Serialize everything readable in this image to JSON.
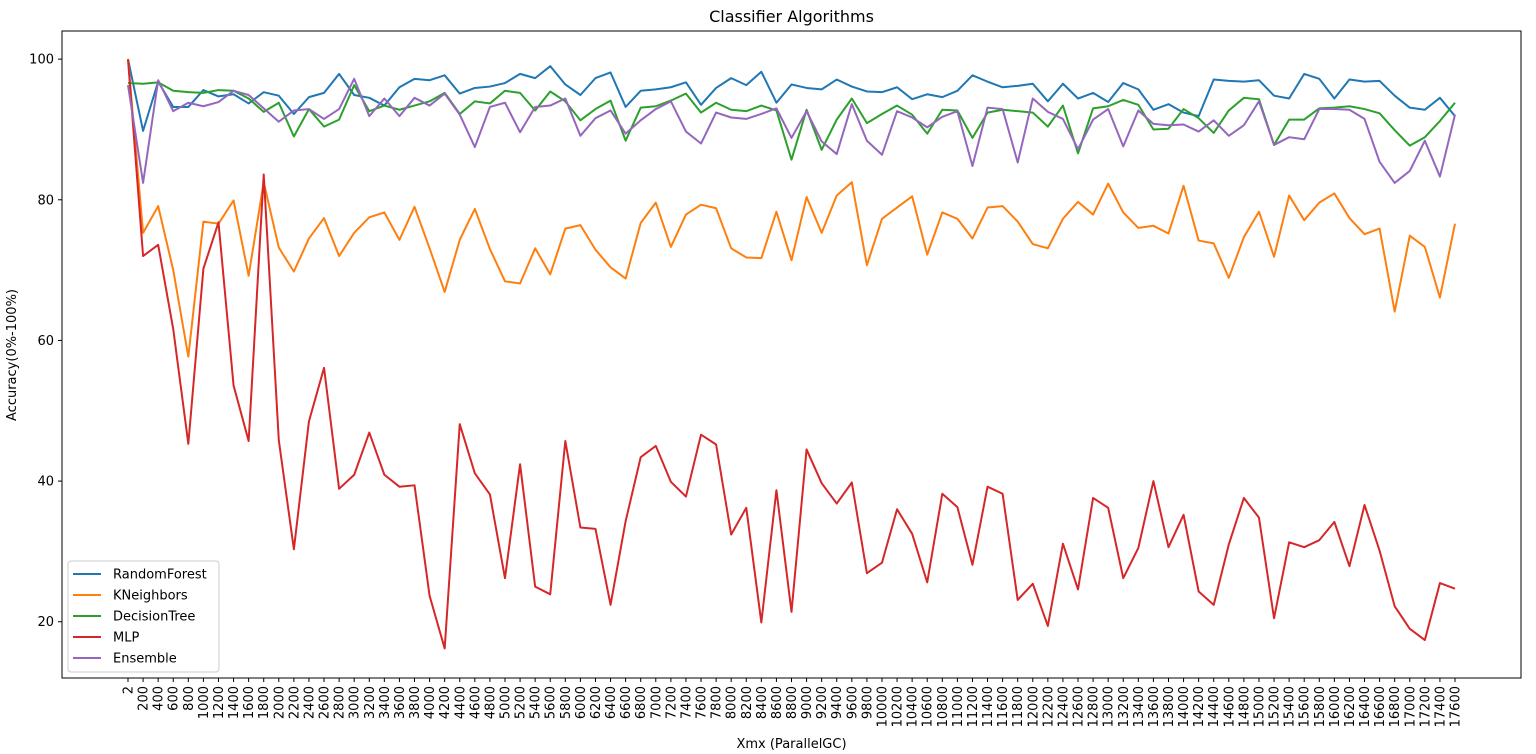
{
  "chart_data": {
    "type": "line",
    "title": "Classifier Algorithms",
    "xlabel": "Xmx (ParallelGC)",
    "ylabel": "Accuracy(0%-100%)",
    "ylim": [
      12,
      104
    ],
    "yticks": [
      20,
      40,
      60,
      80,
      100
    ],
    "grid": false,
    "legend_position": "lower-left",
    "x": [
      "2",
      "200",
      "400",
      "600",
      "800",
      "1000",
      "1200",
      "1400",
      "1600",
      "1800",
      "2000",
      "2200",
      "2400",
      "2600",
      "2800",
      "3000",
      "3200",
      "3400",
      "3600",
      "3800",
      "4000",
      "4200",
      "4400",
      "4600",
      "4800",
      "5000",
      "5200",
      "5400",
      "5600",
      "5800",
      "6000",
      "6200",
      "6400",
      "6600",
      "6800",
      "7000",
      "7200",
      "7400",
      "7600",
      "7800",
      "8000",
      "8200",
      "8400",
      "8600",
      "8800",
      "9000",
      "9200",
      "9400",
      "9600",
      "9800",
      "10000",
      "10200",
      "10400",
      "10600",
      "10800",
      "11000",
      "11200",
      "11400",
      "11600",
      "11800",
      "12000",
      "12200",
      "12400",
      "12600",
      "12800",
      "13000",
      "13200",
      "13400",
      "13600",
      "13800",
      "14000",
      "14200",
      "14400",
      "14600",
      "14800",
      "15000",
      "15200",
      "15400",
      "15600",
      "15800",
      "16000",
      "16200",
      "16400",
      "16600",
      "16800",
      "17000",
      "17200",
      "17400",
      "17600"
    ],
    "series": [
      {
        "name": "RandomForest",
        "color": "#1f77b4",
        "values": [
          100,
          89.8,
          96.8,
          93.2,
          93.2,
          95.6,
          94.7,
          95,
          93.7,
          95.3,
          94.8,
          92.2,
          94.6,
          95.2,
          97.9,
          94.9,
          94.5,
          93.4,
          96,
          97.2,
          97,
          97.7,
          95.1,
          95.9,
          96.1,
          96.6,
          97.9,
          97.3,
          99,
          96.4,
          94.9,
          97.3,
          98.1,
          93.2,
          95.5,
          95.7,
          96,
          96.7,
          93.5,
          95.9,
          97.3,
          96.3,
          98.2,
          93.8,
          96.4,
          95.9,
          95.7,
          97.1,
          96.1,
          95.4,
          95.3,
          96,
          94.3,
          95,
          94.6,
          95.5,
          97.7,
          96.8,
          96,
          96.2,
          96.5,
          94,
          96.5,
          94.4,
          95.2,
          93.9,
          96.6,
          95.7,
          92.8,
          93.6,
          92.4,
          91.9,
          97.1,
          96.9,
          96.8,
          97,
          94.8,
          94.4,
          97.9,
          97.2,
          94.4,
          97.1,
          96.8,
          96.9,
          94.8,
          93.1,
          92.8,
          94.5,
          91.9
        ]
      },
      {
        "name": "KNeighbors",
        "color": "#ff7f0e",
        "values": [
          100,
          75.3,
          79.1,
          70,
          57.7,
          76.9,
          76.6,
          79.9,
          69.2,
          82.5,
          73.2,
          69.8,
          74.5,
          77.4,
          72,
          75.3,
          77.5,
          78.2,
          74.3,
          79,
          73.1,
          66.9,
          74.3,
          78.7,
          73,
          68.4,
          68.1,
          73.1,
          69.4,
          75.9,
          76.4,
          72.9,
          70.4,
          68.8,
          76.7,
          79.6,
          73.3,
          77.9,
          79.3,
          78.8,
          73.1,
          71.8,
          71.7,
          78.3,
          71.4,
          80.4,
          75.3,
          80.6,
          82.5,
          70.7,
          77.3,
          78.9,
          80.5,
          72.2,
          78.2,
          77.3,
          74.5,
          78.9,
          79.1,
          76.9,
          73.7,
          73.1,
          77.3,
          79.7,
          77.9,
          82.3,
          78.2,
          76,
          76.3,
          75.2,
          82,
          74.2,
          73.8,
          68.9,
          74.7,
          78.3,
          71.9,
          80.6,
          77.1,
          79.6,
          80.9,
          77.4,
          75.1,
          75.9,
          64.1,
          74.9,
          73.3,
          66.1,
          76.6
        ]
      },
      {
        "name": "DecisionTree",
        "color": "#2ca02c",
        "values": [
          96.6,
          96.5,
          96.7,
          95.5,
          95.3,
          95.2,
          95.6,
          95.5,
          94.4,
          92.5,
          93.8,
          89,
          92.9,
          90.4,
          91.4,
          96.3,
          92.6,
          93.4,
          92.8,
          93.4,
          94,
          95.2,
          92.2,
          94,
          93.7,
          95.5,
          95.2,
          92.7,
          95.4,
          94,
          91.3,
          92.9,
          94.1,
          88.4,
          93.1,
          93.3,
          94.1,
          95.1,
          92.4,
          93.8,
          92.8,
          92.6,
          93.4,
          92.7,
          85.7,
          92.8,
          87.1,
          91.4,
          94.4,
          90.9,
          92.2,
          93.4,
          92.1,
          89.4,
          92.8,
          92.7,
          88.8,
          92.4,
          92.8,
          92.6,
          92.4,
          90.4,
          93.4,
          86.6,
          93,
          93.3,
          94.2,
          93.5,
          90,
          90.1,
          92.9,
          91.6,
          89.5,
          92.7,
          94.5,
          94.3,
          87.8,
          91.4,
          91.4,
          93,
          93.1,
          93.3,
          92.9,
          92.3,
          89.9,
          87.7,
          88.9,
          91.2,
          93.8
        ]
      },
      {
        "name": "MLP",
        "color": "#d62728",
        "values": [
          100,
          72,
          73.6,
          61.6,
          45.3,
          70.2,
          76.8,
          53.6,
          45.7,
          83.6,
          45.8,
          30.3,
          48.5,
          56.1,
          38.9,
          40.9,
          46.9,
          40.9,
          39.2,
          39.4,
          23.7,
          16.2,
          48.1,
          41.1,
          38.1,
          26.2,
          42.4,
          25,
          23.9,
          45.7,
          33.4,
          33.2,
          22.4,
          34.3,
          43.4,
          45,
          39.9,
          37.8,
          46.6,
          45.2,
          32.4,
          36.2,
          19.9,
          38.7,
          21.4,
          44.5,
          39.7,
          36.8,
          39.8,
          26.9,
          28.4,
          36,
          32.5,
          25.6,
          38.2,
          36.3,
          28.1,
          39.2,
          38.2,
          23.1,
          25.4,
          19.4,
          31.1,
          24.6,
          37.6,
          36.2,
          26.2,
          30.5,
          40,
          30.6,
          35.2,
          24.3,
          22.4,
          31,
          37.6,
          34.8,
          20.5,
          31.3,
          30.6,
          31.6,
          34.2,
          27.9,
          36.6,
          30.1,
          22.2,
          19,
          17.4,
          25.5,
          24.7
        ]
      },
      {
        "name": "Ensemble",
        "color": "#9467bd",
        "values": [
          96.3,
          82.4,
          97,
          92.6,
          93.8,
          93.3,
          93.9,
          95.5,
          94.9,
          93,
          91.1,
          92.7,
          92.9,
          91.5,
          92.9,
          97.2,
          91.9,
          94.4,
          91.9,
          94.5,
          93.4,
          95.1,
          92.1,
          87.5,
          93.2,
          93.8,
          89.6,
          93.2,
          93.4,
          94.4,
          89.1,
          91.6,
          92.7,
          89.4,
          91.3,
          92.9,
          94,
          89.7,
          88,
          92.4,
          91.7,
          91.5,
          92.2,
          93,
          88.8,
          92.6,
          88.3,
          86.5,
          93.6,
          88.4,
          86.4,
          92.6,
          91.7,
          90.3,
          91.8,
          92.6,
          84.8,
          93.1,
          92.9,
          85.3,
          94.4,
          92.5,
          91.5,
          87.2,
          91.4,
          92.9,
          87.6,
          92.7,
          90.8,
          90.6,
          90.7,
          89.7,
          91.3,
          89.1,
          90.6,
          94,
          87.8,
          88.9,
          88.6,
          92.9,
          92.9,
          92.8,
          91.5,
          85.4,
          82.4,
          84.1,
          88.4,
          83.3,
          92.1
        ]
      }
    ]
  }
}
